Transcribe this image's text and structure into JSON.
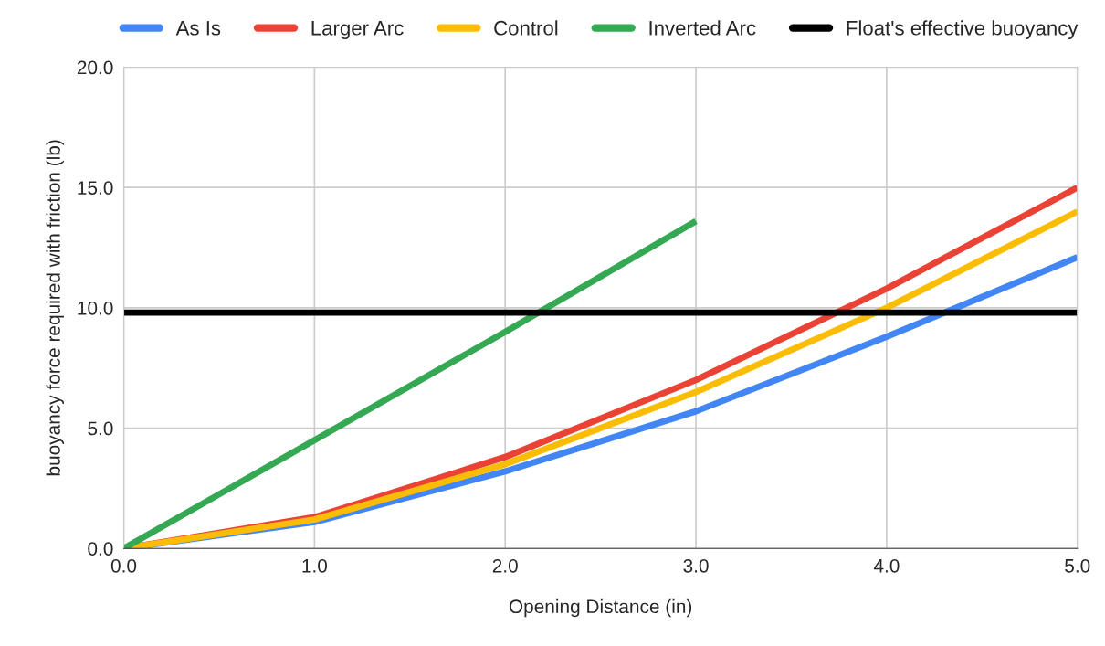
{
  "chart_data": {
    "type": "line",
    "xlabel": "Opening Distance (in)",
    "ylabel": "buoyancy force required with friction (lb)",
    "x": [
      0,
      1,
      2,
      3,
      4,
      5
    ],
    "series": [
      {
        "name": "As Is",
        "color": "#4285f4",
        "values": [
          0,
          1.1,
          3.2,
          5.7,
          8.8,
          12.1
        ]
      },
      {
        "name": "Larger Arc",
        "color": "#ea4335",
        "values": [
          0,
          1.3,
          3.8,
          7.0,
          10.8,
          15.0
        ]
      },
      {
        "name": "Control",
        "color": "#fbbc04",
        "values": [
          0,
          1.2,
          3.5,
          6.5,
          10.0,
          14.0
        ]
      },
      {
        "name": "Inverted Arc",
        "color": "#34a853",
        "values": [
          0,
          4.5,
          9.0,
          13.6,
          null,
          null
        ]
      },
      {
        "name": "Float's effective buoyancy",
        "color": "#000000",
        "values": [
          9.8,
          9.8,
          9.8,
          9.8,
          9.8,
          9.8
        ]
      }
    ],
    "xlim": [
      0,
      5
    ],
    "xticks": [
      {
        "value": 0,
        "label": "0.0"
      },
      {
        "value": 1,
        "label": "1.0"
      },
      {
        "value": 2,
        "label": "2.0"
      },
      {
        "value": 3,
        "label": "3.0"
      },
      {
        "value": 4,
        "label": "4.0"
      },
      {
        "value": 5,
        "label": "5.0"
      }
    ],
    "ylim": [
      0,
      20
    ],
    "yticks": [
      {
        "value": 0,
        "label": "0.0"
      },
      {
        "value": 5,
        "label": "5.0"
      },
      {
        "value": 10,
        "label": "10.0"
      },
      {
        "value": 15,
        "label": "15.0"
      },
      {
        "value": 20,
        "label": "20.0"
      }
    ],
    "grid": true,
    "legend": "top",
    "line_style": "solid",
    "marker": "none"
  }
}
